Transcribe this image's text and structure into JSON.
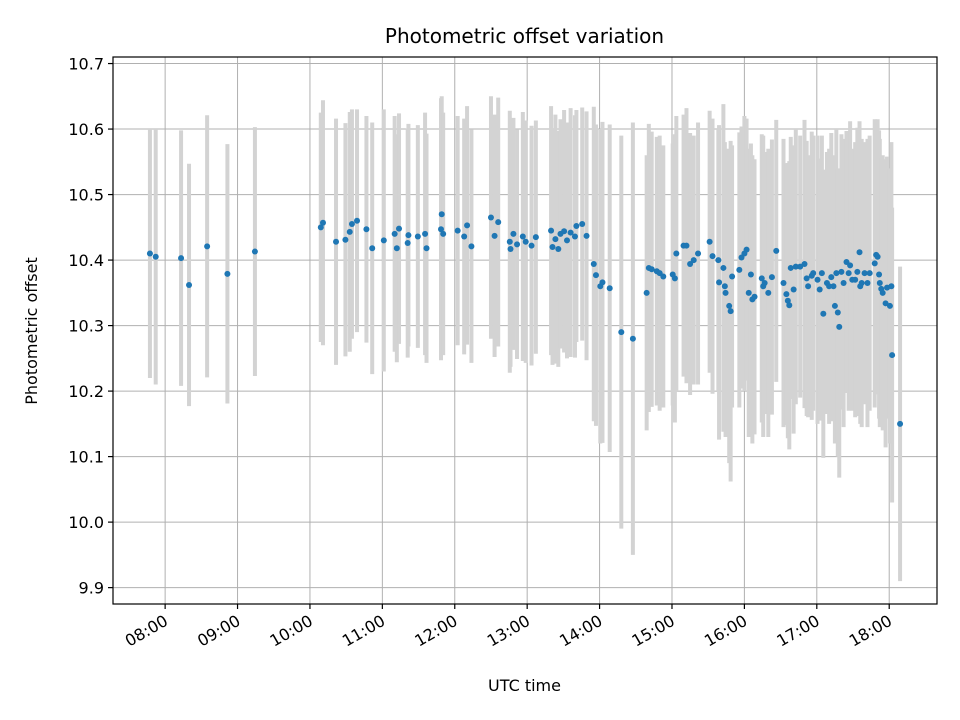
{
  "chart_data": {
    "type": "scatter",
    "title": "Photometric offset variation",
    "xlabel": "UTC time",
    "ylabel": "Photometric offset",
    "x_unit": "hours UTC",
    "xlim": [
      7.28,
      18.66
    ],
    "ylim": [
      9.875,
      10.71
    ],
    "x_ticks": [
      {
        "value": 8,
        "label": "08:00"
      },
      {
        "value": 9,
        "label": "09:00"
      },
      {
        "value": 10,
        "label": "10:00"
      },
      {
        "value": 11,
        "label": "11:00"
      },
      {
        "value": 12,
        "label": "12:00"
      },
      {
        "value": 13,
        "label": "13:00"
      },
      {
        "value": 14,
        "label": "14:00"
      },
      {
        "value": 15,
        "label": "15:00"
      },
      {
        "value": 16,
        "label": "16:00"
      },
      {
        "value": 17,
        "label": "17:00"
      },
      {
        "value": 18,
        "label": "18:00"
      }
    ],
    "y_ticks": [
      {
        "value": 9.9,
        "label": "9.9"
      },
      {
        "value": 10.0,
        "label": "10.0"
      },
      {
        "value": 10.1,
        "label": "10.1"
      },
      {
        "value": 10.2,
        "label": "10.2"
      },
      {
        "value": 10.3,
        "label": "10.3"
      },
      {
        "value": 10.4,
        "label": "10.4"
      },
      {
        "value": 10.5,
        "label": "10.5"
      },
      {
        "value": 10.6,
        "label": "10.6"
      },
      {
        "value": 10.7,
        "label": "10.7"
      }
    ],
    "grid": true,
    "colors": {
      "point": "#1f77b4",
      "errorbar": "#d3d3d3",
      "grid": "#b0b0b0"
    },
    "points": [
      [
        7.79,
        10.41,
        0.19
      ],
      [
        7.87,
        10.405,
        0.195
      ],
      [
        8.22,
        10.403,
        0.195
      ],
      [
        8.33,
        10.362,
        0.185
      ],
      [
        8.58,
        10.421,
        0.2
      ],
      [
        8.86,
        10.379,
        0.198
      ],
      [
        9.24,
        10.413,
        0.19
      ],
      [
        10.15,
        10.45,
        0.175
      ],
      [
        10.18,
        10.457,
        0.187
      ],
      [
        10.36,
        10.428,
        0.188
      ],
      [
        10.49,
        10.431,
        0.178
      ],
      [
        10.55,
        10.443,
        0.183
      ],
      [
        10.58,
        10.455,
        0.175
      ],
      [
        10.65,
        10.46,
        0.17
      ],
      [
        10.78,
        10.447,
        0.173
      ],
      [
        10.86,
        10.418,
        0.192
      ],
      [
        11.02,
        10.43,
        0.2
      ],
      [
        11.17,
        10.44,
        0.18
      ],
      [
        11.2,
        10.418,
        0.174
      ],
      [
        11.23,
        10.448,
        0.176
      ],
      [
        11.35,
        10.426,
        0.175
      ],
      [
        11.36,
        10.438,
        0.17
      ],
      [
        11.49,
        10.436,
        0.17
      ],
      [
        11.59,
        10.44,
        0.185
      ],
      [
        11.61,
        10.418,
        0.175
      ],
      [
        11.81,
        10.447,
        0.2
      ],
      [
        11.82,
        10.47,
        0.18
      ],
      [
        11.84,
        10.44,
        0.185
      ],
      [
        12.04,
        10.445,
        0.175
      ],
      [
        12.13,
        10.436,
        0.18
      ],
      [
        12.17,
        10.453,
        0.182
      ],
      [
        12.23,
        10.421,
        0.178
      ],
      [
        12.5,
        10.465,
        0.185
      ],
      [
        12.55,
        10.437,
        0.185
      ],
      [
        12.6,
        10.458,
        0.19
      ],
      [
        12.76,
        10.428,
        0.2
      ],
      [
        12.77,
        10.417,
        0.18
      ],
      [
        12.81,
        10.44,
        0.177
      ],
      [
        12.86,
        10.424,
        0.175
      ],
      [
        12.94,
        10.436,
        0.19
      ],
      [
        12.98,
        10.428,
        0.185
      ],
      [
        13.06,
        10.422,
        0.183
      ],
      [
        13.12,
        10.435,
        0.178
      ],
      [
        13.33,
        10.445,
        0.19
      ],
      [
        13.35,
        10.42,
        0.18
      ],
      [
        13.39,
        10.432,
        0.19
      ],
      [
        13.43,
        10.417,
        0.18
      ],
      [
        13.46,
        10.44,
        0.175
      ],
      [
        13.51,
        10.444,
        0.185
      ],
      [
        13.55,
        10.43,
        0.18
      ],
      [
        13.6,
        10.442,
        0.19
      ],
      [
        13.66,
        10.436,
        0.185
      ],
      [
        13.68,
        10.452,
        0.177
      ],
      [
        13.76,
        10.455,
        0.178
      ],
      [
        13.82,
        10.437,
        0.19
      ],
      [
        13.92,
        10.394,
        0.24
      ],
      [
        13.95,
        10.377,
        0.23
      ],
      [
        14.01,
        10.36,
        0.24
      ],
      [
        14.04,
        10.366,
        0.245
      ],
      [
        14.14,
        10.357,
        0.25
      ],
      [
        14.3,
        10.29,
        0.3
      ],
      [
        14.46,
        10.28,
        0.33
      ],
      [
        14.65,
        10.35,
        0.21
      ],
      [
        14.68,
        10.388,
        0.22
      ],
      [
        14.72,
        10.386,
        0.21
      ],
      [
        14.79,
        10.383,
        0.205
      ],
      [
        14.83,
        10.38,
        0.21
      ],
      [
        14.88,
        10.375,
        0.2
      ],
      [
        15.01,
        10.378,
        0.2
      ],
      [
        15.04,
        10.372,
        0.22
      ],
      [
        15.06,
        10.41,
        0.21
      ],
      [
        15.16,
        10.422,
        0.2
      ],
      [
        15.2,
        10.422,
        0.21
      ],
      [
        15.25,
        10.394,
        0.2
      ],
      [
        15.3,
        10.4,
        0.19
      ],
      [
        15.36,
        10.41,
        0.2
      ],
      [
        15.52,
        10.428,
        0.2
      ],
      [
        15.56,
        10.406,
        0.21
      ],
      [
        15.64,
        10.4,
        0.2
      ],
      [
        15.65,
        10.366,
        0.24
      ],
      [
        15.71,
        10.388,
        0.25
      ],
      [
        15.73,
        10.36,
        0.22
      ],
      [
        15.74,
        10.35,
        0.22
      ],
      [
        15.79,
        10.33,
        0.24
      ],
      [
        15.81,
        10.322,
        0.26
      ],
      [
        15.83,
        10.375,
        0.2
      ],
      [
        15.93,
        10.385,
        0.21
      ],
      [
        15.96,
        10.404,
        0.2
      ],
      [
        16.0,
        10.41,
        0.21
      ],
      [
        16.03,
        10.416,
        0.2
      ],
      [
        16.06,
        10.35,
        0.22
      ],
      [
        16.09,
        10.378,
        0.2
      ],
      [
        16.11,
        10.34,
        0.22
      ],
      [
        16.14,
        10.344,
        0.21
      ],
      [
        16.24,
        10.372,
        0.22
      ],
      [
        16.26,
        10.36,
        0.23
      ],
      [
        16.28,
        10.365,
        0.2
      ],
      [
        16.33,
        10.35,
        0.22
      ],
      [
        16.38,
        10.374,
        0.21
      ],
      [
        16.44,
        10.414,
        0.2
      ],
      [
        16.54,
        10.365,
        0.22
      ],
      [
        16.58,
        10.348,
        0.2
      ],
      [
        16.6,
        10.338,
        0.21
      ],
      [
        16.62,
        10.331,
        0.22
      ],
      [
        16.64,
        10.388,
        0.2
      ],
      [
        16.68,
        10.355,
        0.22
      ],
      [
        16.71,
        10.39,
        0.21
      ],
      [
        16.77,
        10.39,
        0.2
      ],
      [
        16.83,
        10.394,
        0.22
      ],
      [
        16.86,
        10.372,
        0.21
      ],
      [
        16.88,
        10.36,
        0.2
      ],
      [
        16.93,
        10.376,
        0.22
      ],
      [
        16.95,
        10.38,
        0.21
      ],
      [
        17.01,
        10.37,
        0.22
      ],
      [
        17.04,
        10.355,
        0.2
      ],
      [
        17.07,
        10.38,
        0.21
      ],
      [
        17.09,
        10.318,
        0.22
      ],
      [
        17.14,
        10.365,
        0.2
      ],
      [
        17.17,
        10.36,
        0.21
      ],
      [
        17.2,
        10.374,
        0.22
      ],
      [
        17.23,
        10.36,
        0.2
      ],
      [
        17.25,
        10.33,
        0.21
      ],
      [
        17.27,
        10.38,
        0.22
      ],
      [
        17.29,
        10.32,
        0.22
      ],
      [
        17.31,
        10.298,
        0.23
      ],
      [
        17.34,
        10.382,
        0.21
      ],
      [
        17.37,
        10.365,
        0.22
      ],
      [
        17.41,
        10.397,
        0.2
      ],
      [
        17.44,
        10.38,
        0.21
      ],
      [
        17.46,
        10.392,
        0.22
      ],
      [
        17.49,
        10.37,
        0.2
      ],
      [
        17.53,
        10.37,
        0.21
      ],
      [
        17.56,
        10.382,
        0.22
      ],
      [
        17.59,
        10.412,
        0.2
      ],
      [
        17.6,
        10.36,
        0.21
      ],
      [
        17.62,
        10.365,
        0.22
      ],
      [
        17.66,
        10.38,
        0.2
      ],
      [
        17.7,
        10.365,
        0.22
      ],
      [
        17.73,
        10.38,
        0.21
      ],
      [
        17.8,
        10.395,
        0.22
      ],
      [
        17.82,
        10.408,
        0.2
      ],
      [
        17.84,
        10.405,
        0.21
      ],
      [
        17.86,
        10.378,
        0.22
      ],
      [
        17.87,
        10.365,
        0.22
      ],
      [
        17.89,
        10.356,
        0.2
      ],
      [
        17.91,
        10.35,
        0.21
      ],
      [
        17.95,
        10.334,
        0.22
      ],
      [
        17.97,
        10.358,
        0.2
      ],
      [
        18.01,
        10.33,
        0.21
      ],
      [
        18.03,
        10.36,
        0.22
      ],
      [
        18.04,
        10.255,
        0.225
      ],
      [
        18.15,
        10.15,
        0.24
      ]
    ]
  }
}
